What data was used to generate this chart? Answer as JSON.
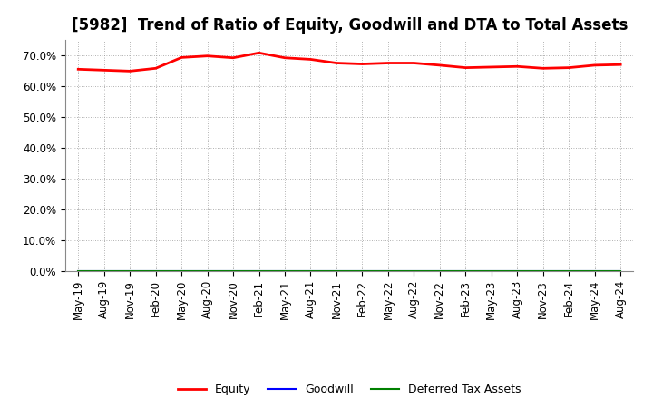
{
  "title": "[5982]  Trend of Ratio of Equity, Goodwill and DTA to Total Assets",
  "x_labels": [
    "May-19",
    "Aug-19",
    "Nov-19",
    "Feb-20",
    "May-20",
    "Aug-20",
    "Nov-20",
    "Feb-21",
    "May-21",
    "Aug-21",
    "Nov-21",
    "Feb-22",
    "May-22",
    "Aug-22",
    "Nov-22",
    "Feb-23",
    "May-23",
    "Aug-23",
    "Nov-23",
    "Feb-24",
    "May-24",
    "Aug-24"
  ],
  "equity": [
    65.5,
    65.2,
    64.9,
    65.8,
    69.3,
    69.8,
    69.2,
    70.8,
    69.2,
    68.7,
    67.5,
    67.2,
    67.5,
    67.5,
    66.8,
    66.0,
    66.2,
    66.4,
    65.8,
    66.0,
    66.8,
    67.0
  ],
  "goodwill": [
    0.0,
    0.0,
    0.0,
    0.0,
    0.0,
    0.0,
    0.0,
    0.0,
    0.0,
    0.0,
    0.0,
    0.0,
    0.0,
    0.0,
    0.0,
    0.0,
    0.0,
    0.0,
    0.0,
    0.0,
    0.0,
    0.0
  ],
  "dta": [
    0.0,
    0.0,
    0.0,
    0.0,
    0.0,
    0.0,
    0.0,
    0.0,
    0.0,
    0.0,
    0.0,
    0.0,
    0.0,
    0.0,
    0.0,
    0.0,
    0.0,
    0.0,
    0.0,
    0.0,
    0.0,
    0.0
  ],
  "equity_color": "#ff0000",
  "goodwill_color": "#0000ff",
  "dta_color": "#008000",
  "ylim": [
    0,
    75
  ],
  "yticks": [
    0,
    10,
    20,
    30,
    40,
    50,
    60,
    70
  ],
  "background_color": "#ffffff",
  "plot_bg_color": "#ffffff",
  "grid_color": "#999999",
  "legend_labels": [
    "Equity",
    "Goodwill",
    "Deferred Tax Assets"
  ],
  "title_fontsize": 12,
  "tick_fontsize": 8.5,
  "legend_fontsize": 9
}
